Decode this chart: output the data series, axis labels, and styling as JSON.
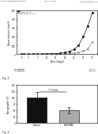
{
  "header_left": "Patent Application Publication",
  "header_mid": "Dec. 10, 2015",
  "header_right": "US 2015/0346084 A1",
  "fig1": {
    "xlabel": "Time (days)",
    "ylabel": "Tumor volume (mm3)",
    "xlim": [
      -2,
      33
    ],
    "ylim": [
      0,
      500
    ],
    "yticks": [
      0,
      100,
      200,
      300,
      400,
      500
    ],
    "xticks": [
      0,
      3,
      7,
      11,
      15,
      19,
      23,
      27,
      31
    ],
    "control_x": [
      0,
      1,
      3,
      5,
      7,
      9,
      11,
      13,
      15,
      17,
      19,
      21,
      23,
      25,
      27,
      29,
      31
    ],
    "control_y": [
      2,
      2,
      2,
      3,
      3,
      4,
      5,
      6,
      8,
      12,
      18,
      30,
      55,
      100,
      200,
      320,
      470
    ],
    "drug_x": [
      0,
      1,
      3,
      5,
      7,
      9,
      11,
      13,
      15,
      17,
      19,
      21,
      23,
      25,
      27,
      29,
      31
    ],
    "drug_y": [
      2,
      2,
      2,
      2,
      2,
      2,
      2,
      2,
      3,
      4,
      5,
      7,
      10,
      18,
      35,
      60,
      140
    ],
    "control_label": "Control (n=8)",
    "drug_label": "DRUG/ME (n=10)",
    "control_color": "#000000",
    "drug_color": "#444444",
    "control_marker": "s",
    "drug_marker": "s",
    "annotation_left": "Subcutaneous\ntumor cells",
    "annotation_mid": "Start of\ntreatment",
    "annotation_right": "End of\ntreatment",
    "fig_label": "Fig. 1"
  },
  "fig2": {
    "ylabel": "Net growth (%)",
    "ylim": [
      0,
      150
    ],
    "yticks": [
      0,
      25,
      50,
      75,
      100,
      125,
      150
    ],
    "categories": [
      "Control",
      "DRUG/ME"
    ],
    "values": [
      100,
      50
    ],
    "errors": [
      22,
      12
    ],
    "bar_colors": [
      "#111111",
      "#aaaaaa"
    ],
    "annotation": "** P<0.05",
    "fig_label": "Fig. 2"
  }
}
